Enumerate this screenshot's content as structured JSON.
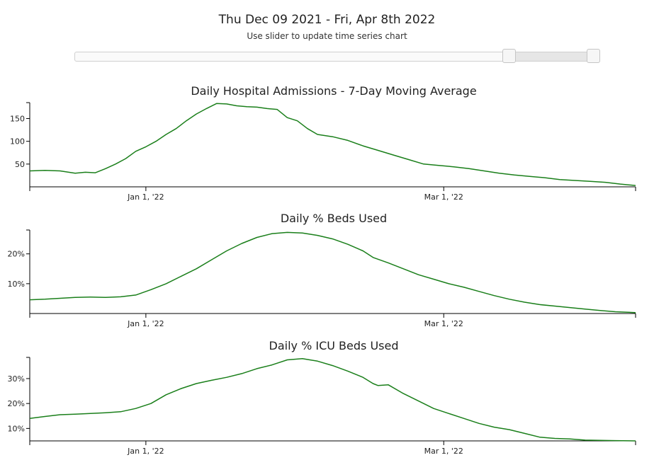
{
  "header": {
    "date_range": "Thu Dec 09 2021 - Fri, Apr 8th 2022",
    "subtitle": "Use slider to update time series chart"
  },
  "slider": {
    "selected_start_fraction": 0.829,
    "selected_end_fraction": 0.99
  },
  "colors": {
    "line": "#1a7f1a",
    "axis": "#000000"
  },
  "chart_data": [
    {
      "type": "line",
      "title": "Daily Hospital Admissions - 7-Day Moving Average",
      "x_domain": [
        "2021-12-09",
        "2022-04-08"
      ],
      "ylim": [
        0,
        185
      ],
      "y_ticks": [
        50,
        100,
        150
      ],
      "y_tick_labels": [
        "50",
        "100",
        "150"
      ],
      "x_ticks": [
        "2022-01-01",
        "2022-03-01"
      ],
      "x_tick_labels": [
        "Jan 1, '22",
        "Mar 1, '22"
      ],
      "x": [
        "2021-12-09",
        "2021-12-12",
        "2021-12-15",
        "2021-12-18",
        "2021-12-20",
        "2021-12-22",
        "2021-12-24",
        "2021-12-26",
        "2021-12-28",
        "2021-12-30",
        "2022-01-01",
        "2022-01-03",
        "2022-01-05",
        "2022-01-07",
        "2022-01-09",
        "2022-01-11",
        "2022-01-13",
        "2022-01-15",
        "2022-01-17",
        "2022-01-19",
        "2022-01-21",
        "2022-01-23",
        "2022-01-25",
        "2022-01-27",
        "2022-01-29",
        "2022-01-31",
        "2022-02-02",
        "2022-02-04",
        "2022-02-07",
        "2022-02-10",
        "2022-02-13",
        "2022-02-16",
        "2022-02-19",
        "2022-02-22",
        "2022-02-25",
        "2022-02-28",
        "2022-03-03",
        "2022-03-06",
        "2022-03-09",
        "2022-03-12",
        "2022-03-15",
        "2022-03-18",
        "2022-03-21",
        "2022-03-24",
        "2022-03-27",
        "2022-03-30",
        "2022-04-02",
        "2022-04-05",
        "2022-04-08"
      ],
      "series": [
        {
          "values": [
            35,
            36,
            35,
            30,
            32,
            31,
            40,
            50,
            62,
            78,
            88,
            100,
            115,
            128,
            145,
            160,
            172,
            183,
            182,
            178,
            176,
            175,
            172,
            170,
            152,
            145,
            128,
            115,
            110,
            102,
            90,
            80,
            70,
            60,
            50,
            47,
            44,
            40,
            35,
            30,
            26,
            23,
            20,
            16,
            14,
            12,
            10,
            6,
            3
          ]
        }
      ]
    },
    {
      "type": "line",
      "title": "Daily % Beds Used",
      "x_domain": [
        "2021-12-09",
        "2022-04-08"
      ],
      "ylim": [
        0,
        0.28
      ],
      "y_ticks": [
        0.1,
        0.2
      ],
      "y_tick_labels": [
        "10%",
        "20%"
      ],
      "x_ticks": [
        "2022-01-01",
        "2022-03-01"
      ],
      "x_tick_labels": [
        "Jan 1, '22",
        "Mar 1, '22"
      ],
      "x": [
        "2021-12-09",
        "2021-12-12",
        "2021-12-15",
        "2021-12-18",
        "2021-12-21",
        "2021-12-24",
        "2021-12-27",
        "2021-12-30",
        "2022-01-02",
        "2022-01-05",
        "2022-01-08",
        "2022-01-11",
        "2022-01-14",
        "2022-01-17",
        "2022-01-20",
        "2022-01-23",
        "2022-01-26",
        "2022-01-29",
        "2022-02-01",
        "2022-02-04",
        "2022-02-07",
        "2022-02-10",
        "2022-02-13",
        "2022-02-15",
        "2022-02-18",
        "2022-02-21",
        "2022-02-24",
        "2022-02-27",
        "2022-03-02",
        "2022-03-05",
        "2022-03-08",
        "2022-03-11",
        "2022-03-14",
        "2022-03-17",
        "2022-03-20",
        "2022-03-23",
        "2022-03-26",
        "2022-03-29",
        "2022-04-01",
        "2022-04-04",
        "2022-04-08"
      ],
      "series": [
        {
          "values": [
            0.046,
            0.048,
            0.051,
            0.054,
            0.055,
            0.054,
            0.056,
            0.062,
            0.08,
            0.1,
            0.125,
            0.15,
            0.18,
            0.21,
            0.235,
            0.255,
            0.268,
            0.272,
            0.27,
            0.262,
            0.25,
            0.232,
            0.21,
            0.188,
            0.17,
            0.15,
            0.13,
            0.115,
            0.1,
            0.088,
            0.074,
            0.06,
            0.048,
            0.038,
            0.03,
            0.025,
            0.02,
            0.015,
            0.01,
            0.006,
            0.003
          ]
        }
      ]
    },
    {
      "type": "line",
      "title": "Daily % ICU Beds Used",
      "x_domain": [
        "2021-12-09",
        "2022-04-08"
      ],
      "ylim": [
        0.05,
        0.385
      ],
      "y_ticks": [
        0.1,
        0.2,
        0.3
      ],
      "y_tick_labels": [
        "10%",
        "20%",
        "30%"
      ],
      "x_ticks": [
        "2022-01-01",
        "2022-03-01"
      ],
      "x_tick_labels": [
        "Jan 1, '22",
        "Mar 1, '22"
      ],
      "x": [
        "2021-12-09",
        "2021-12-12",
        "2021-12-15",
        "2021-12-18",
        "2021-12-21",
        "2021-12-24",
        "2021-12-27",
        "2021-12-30",
        "2022-01-02",
        "2022-01-05",
        "2022-01-08",
        "2022-01-11",
        "2022-01-14",
        "2022-01-17",
        "2022-01-20",
        "2022-01-23",
        "2022-01-26",
        "2022-01-29",
        "2022-02-01",
        "2022-02-04",
        "2022-02-07",
        "2022-02-10",
        "2022-02-13",
        "2022-02-15",
        "2022-02-16",
        "2022-02-18",
        "2022-02-21",
        "2022-02-24",
        "2022-02-27",
        "2022-03-02",
        "2022-03-05",
        "2022-03-08",
        "2022-03-11",
        "2022-03-14",
        "2022-03-17",
        "2022-03-20",
        "2022-03-23",
        "2022-03-26",
        "2022-03-29",
        "2022-04-01",
        "2022-04-04",
        "2022-04-08"
      ],
      "series": [
        {
          "values": [
            0.14,
            0.148,
            0.155,
            0.157,
            0.16,
            0.163,
            0.167,
            0.18,
            0.2,
            0.235,
            0.26,
            0.28,
            0.293,
            0.305,
            0.32,
            0.34,
            0.355,
            0.375,
            0.38,
            0.37,
            0.352,
            0.33,
            0.305,
            0.28,
            0.272,
            0.275,
            0.24,
            0.21,
            0.18,
            0.16,
            0.14,
            0.12,
            0.105,
            0.095,
            0.08,
            0.065,
            0.06,
            0.058,
            0.053,
            0.052,
            0.051,
            0.05
          ]
        }
      ]
    }
  ]
}
